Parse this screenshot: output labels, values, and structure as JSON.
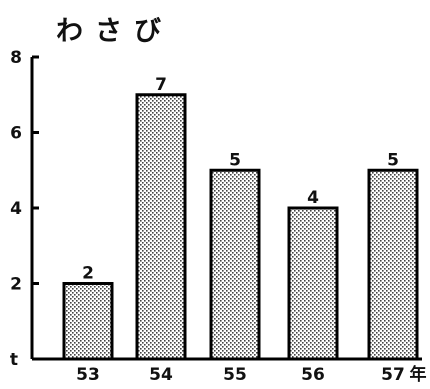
{
  "chart_data": {
    "type": "bar",
    "title": "わさび",
    "ylabel": "t",
    "xunit": "年",
    "categories": [
      "53",
      "54",
      "55",
      "56",
      "57"
    ],
    "values": [
      2,
      7,
      5,
      4,
      5
    ],
    "value_labels": [
      "2",
      "7",
      "5",
      "4",
      "5"
    ],
    "y_ticks": [
      {
        "value": 8,
        "label": "8"
      },
      {
        "value": 6,
        "label": "6"
      },
      {
        "value": 4,
        "label": "4"
      },
      {
        "value": 2,
        "label": "2"
      }
    ],
    "ylim": [
      0,
      8
    ],
    "grid": false,
    "legend": "none",
    "bar_fill": "#d8d8d8",
    "bar_stroke": "#000000"
  }
}
